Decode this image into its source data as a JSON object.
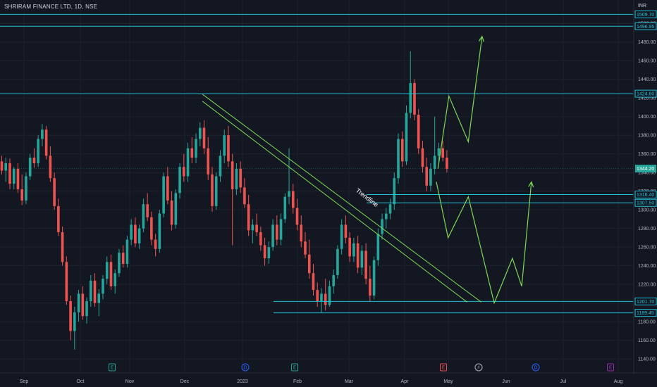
{
  "header": {
    "title": "SHRIRAM FINANCE LTD, 1D, NSE",
    "currency": "INR"
  },
  "colors": {
    "background": "#131722",
    "up": "#26a69a",
    "down": "#ef5350",
    "level_line": "#22c2d6",
    "projection": "#7ed957",
    "trendline": "#7ed957",
    "axis_text": "#b2b5be"
  },
  "chart_data": {
    "type": "candlestick",
    "ylim": [
      1135,
      1520
    ],
    "x_tick_labels": [
      "Sep",
      "Oct",
      "Nov",
      "Dec",
      "2023",
      "Feb",
      "Mar",
      "Apr",
      "May",
      "Jun",
      "Jul",
      "Aug"
    ],
    "y_tick_labels": [
      "1140.00",
      "1160.00",
      "1180.00",
      "1200.00",
      "1220.00",
      "1240.00",
      "1260.00",
      "1280.00",
      "1300.00",
      "1320.00",
      "1340.00",
      "1360.00",
      "1380.00",
      "1400.00",
      "1420.00",
      "1440.00",
      "1460.00",
      "1480.00",
      "1500.00"
    ],
    "current_price": {
      "value": 1344.2,
      "label": "1344.20"
    },
    "levels": [
      {
        "value": 1509.7,
        "label": "1509.70"
      },
      {
        "value": 1496.95,
        "label": "1496.95"
      },
      {
        "value": 1424.6,
        "label": "1424.60"
      },
      {
        "value": 1316.4,
        "label": "1316.40"
      },
      {
        "value": 1307.5,
        "label": "1307.50"
      },
      {
        "value": 1201.7,
        "label": "1201.70"
      },
      {
        "value": 1189.45,
        "label": "1189.45"
      }
    ],
    "trendline_label": "Trendline",
    "event_markers": [
      {
        "label": "E",
        "color": "#26a69a"
      },
      {
        "label": "D",
        "color": "#2962ff"
      },
      {
        "label": "E",
        "color": "#26a69a"
      },
      {
        "label": "E",
        "color": "#ef5350"
      },
      {
        "label": "⚡",
        "color": "#b2b5be"
      },
      {
        "label": "D",
        "color": "#2962ff"
      },
      {
        "label": "E",
        "color": "#9c27b0"
      }
    ],
    "candles": [
      {
        "o": 1352,
        "h": 1358,
        "l": 1338,
        "c": 1342
      },
      {
        "o": 1342,
        "h": 1356,
        "l": 1330,
        "c": 1350
      },
      {
        "o": 1350,
        "h": 1355,
        "l": 1322,
        "c": 1328
      },
      {
        "o": 1328,
        "h": 1346,
        "l": 1322,
        "c": 1344
      },
      {
        "o": 1344,
        "h": 1350,
        "l": 1318,
        "c": 1322
      },
      {
        "o": 1322,
        "h": 1338,
        "l": 1305,
        "c": 1310
      },
      {
        "o": 1310,
        "h": 1340,
        "l": 1306,
        "c": 1336
      },
      {
        "o": 1336,
        "h": 1360,
        "l": 1332,
        "c": 1356
      },
      {
        "o": 1356,
        "h": 1366,
        "l": 1345,
        "c": 1350
      },
      {
        "o": 1350,
        "h": 1380,
        "l": 1346,
        "c": 1376
      },
      {
        "o": 1376,
        "h": 1392,
        "l": 1368,
        "c": 1386
      },
      {
        "o": 1386,
        "h": 1390,
        "l": 1354,
        "c": 1358
      },
      {
        "o": 1358,
        "h": 1368,
        "l": 1330,
        "c": 1334
      },
      {
        "o": 1334,
        "h": 1340,
        "l": 1300,
        "c": 1304
      },
      {
        "o": 1304,
        "h": 1312,
        "l": 1272,
        "c": 1276
      },
      {
        "o": 1276,
        "h": 1282,
        "l": 1240,
        "c": 1244
      },
      {
        "o": 1244,
        "h": 1250,
        "l": 1198,
        "c": 1202
      },
      {
        "o": 1202,
        "h": 1208,
        "l": 1160,
        "c": 1170
      },
      {
        "o": 1170,
        "h": 1196,
        "l": 1150,
        "c": 1190
      },
      {
        "o": 1190,
        "h": 1214,
        "l": 1180,
        "c": 1210
      },
      {
        "o": 1210,
        "h": 1218,
        "l": 1182,
        "c": 1186
      },
      {
        "o": 1186,
        "h": 1206,
        "l": 1178,
        "c": 1202
      },
      {
        "o": 1202,
        "h": 1230,
        "l": 1196,
        "c": 1224
      },
      {
        "o": 1224,
        "h": 1232,
        "l": 1196,
        "c": 1200
      },
      {
        "o": 1200,
        "h": 1215,
        "l": 1186,
        "c": 1210
      },
      {
        "o": 1210,
        "h": 1230,
        "l": 1204,
        "c": 1226
      },
      {
        "o": 1226,
        "h": 1250,
        "l": 1220,
        "c": 1244
      },
      {
        "o": 1244,
        "h": 1252,
        "l": 1214,
        "c": 1218
      },
      {
        "o": 1218,
        "h": 1236,
        "l": 1210,
        "c": 1232
      },
      {
        "o": 1232,
        "h": 1258,
        "l": 1228,
        "c": 1254
      },
      {
        "o": 1254,
        "h": 1262,
        "l": 1238,
        "c": 1242
      },
      {
        "o": 1242,
        "h": 1272,
        "l": 1238,
        "c": 1268
      },
      {
        "o": 1268,
        "h": 1290,
        "l": 1262,
        "c": 1284
      },
      {
        "o": 1284,
        "h": 1292,
        "l": 1260,
        "c": 1264
      },
      {
        "o": 1264,
        "h": 1284,
        "l": 1258,
        "c": 1280
      },
      {
        "o": 1280,
        "h": 1312,
        "l": 1276,
        "c": 1306
      },
      {
        "o": 1306,
        "h": 1318,
        "l": 1288,
        "c": 1292
      },
      {
        "o": 1292,
        "h": 1298,
        "l": 1262,
        "c": 1268
      },
      {
        "o": 1268,
        "h": 1274,
        "l": 1250,
        "c": 1258
      },
      {
        "o": 1258,
        "h": 1300,
        "l": 1254,
        "c": 1296
      },
      {
        "o": 1296,
        "h": 1340,
        "l": 1292,
        "c": 1336
      },
      {
        "o": 1336,
        "h": 1346,
        "l": 1306,
        "c": 1310
      },
      {
        "o": 1310,
        "h": 1320,
        "l": 1278,
        "c": 1284
      },
      {
        "o": 1284,
        "h": 1322,
        "l": 1280,
        "c": 1318
      },
      {
        "o": 1318,
        "h": 1350,
        "l": 1312,
        "c": 1346
      },
      {
        "o": 1346,
        "h": 1360,
        "l": 1330,
        "c": 1336
      },
      {
        "o": 1336,
        "h": 1372,
        "l": 1330,
        "c": 1366
      },
      {
        "o": 1366,
        "h": 1378,
        "l": 1350,
        "c": 1356
      },
      {
        "o": 1356,
        "h": 1382,
        "l": 1350,
        "c": 1376
      },
      {
        "o": 1376,
        "h": 1394,
        "l": 1368,
        "c": 1388
      },
      {
        "o": 1388,
        "h": 1396,
        "l": 1360,
        "c": 1366
      },
      {
        "o": 1366,
        "h": 1378,
        "l": 1332,
        "c": 1338
      },
      {
        "o": 1338,
        "h": 1346,
        "l": 1298,
        "c": 1304
      },
      {
        "o": 1304,
        "h": 1340,
        "l": 1300,
        "c": 1336
      },
      {
        "o": 1336,
        "h": 1364,
        "l": 1330,
        "c": 1358
      },
      {
        "o": 1358,
        "h": 1386,
        "l": 1350,
        "c": 1380
      },
      {
        "o": 1380,
        "h": 1390,
        "l": 1346,
        "c": 1352
      },
      {
        "o": 1352,
        "h": 1360,
        "l": 1262,
        "c": 1322
      },
      {
        "o": 1322,
        "h": 1350,
        "l": 1316,
        "c": 1344
      },
      {
        "o": 1344,
        "h": 1352,
        "l": 1318,
        "c": 1324
      },
      {
        "o": 1324,
        "h": 1334,
        "l": 1302,
        "c": 1306
      },
      {
        "o": 1306,
        "h": 1316,
        "l": 1272,
        "c": 1278
      },
      {
        "o": 1278,
        "h": 1290,
        "l": 1264,
        "c": 1284
      },
      {
        "o": 1284,
        "h": 1296,
        "l": 1272,
        "c": 1276
      },
      {
        "o": 1276,
        "h": 1282,
        "l": 1256,
        "c": 1262
      },
      {
        "o": 1262,
        "h": 1270,
        "l": 1240,
        "c": 1248
      },
      {
        "o": 1248,
        "h": 1266,
        "l": 1242,
        "c": 1260
      },
      {
        "o": 1260,
        "h": 1290,
        "l": 1256,
        "c": 1284
      },
      {
        "o": 1284,
        "h": 1294,
        "l": 1262,
        "c": 1268
      },
      {
        "o": 1268,
        "h": 1296,
        "l": 1262,
        "c": 1290
      },
      {
        "o": 1290,
        "h": 1318,
        "l": 1286,
        "c": 1314
      },
      {
        "o": 1314,
        "h": 1366,
        "l": 1306,
        "c": 1320
      },
      {
        "o": 1320,
        "h": 1328,
        "l": 1296,
        "c": 1302
      },
      {
        "o": 1302,
        "h": 1312,
        "l": 1278,
        "c": 1284
      },
      {
        "o": 1284,
        "h": 1294,
        "l": 1260,
        "c": 1266
      },
      {
        "o": 1266,
        "h": 1276,
        "l": 1248,
        "c": 1252
      },
      {
        "o": 1252,
        "h": 1268,
        "l": 1226,
        "c": 1232
      },
      {
        "o": 1232,
        "h": 1242,
        "l": 1208,
        "c": 1214
      },
      {
        "o": 1214,
        "h": 1222,
        "l": 1196,
        "c": 1202
      },
      {
        "o": 1202,
        "h": 1216,
        "l": 1190,
        "c": 1210
      },
      {
        "o": 1210,
        "h": 1226,
        "l": 1192,
        "c": 1198
      },
      {
        "o": 1198,
        "h": 1224,
        "l": 1196,
        "c": 1218
      },
      {
        "o": 1218,
        "h": 1236,
        "l": 1210,
        "c": 1230
      },
      {
        "o": 1230,
        "h": 1262,
        "l": 1226,
        "c": 1258
      },
      {
        "o": 1258,
        "h": 1290,
        "l": 1252,
        "c": 1284
      },
      {
        "o": 1284,
        "h": 1294,
        "l": 1264,
        "c": 1270
      },
      {
        "o": 1270,
        "h": 1276,
        "l": 1244,
        "c": 1250
      },
      {
        "o": 1250,
        "h": 1270,
        "l": 1244,
        "c": 1264
      },
      {
        "o": 1264,
        "h": 1272,
        "l": 1232,
        "c": 1238
      },
      {
        "o": 1238,
        "h": 1262,
        "l": 1230,
        "c": 1256
      },
      {
        "o": 1256,
        "h": 1264,
        "l": 1220,
        "c": 1226
      },
      {
        "o": 1226,
        "h": 1240,
        "l": 1202,
        "c": 1208
      },
      {
        "o": 1208,
        "h": 1250,
        "l": 1204,
        "c": 1246
      },
      {
        "o": 1246,
        "h": 1280,
        "l": 1240,
        "c": 1274
      },
      {
        "o": 1274,
        "h": 1296,
        "l": 1268,
        "c": 1290
      },
      {
        "o": 1290,
        "h": 1302,
        "l": 1280,
        "c": 1296
      },
      {
        "o": 1296,
        "h": 1312,
        "l": 1290,
        "c": 1306
      },
      {
        "o": 1306,
        "h": 1340,
        "l": 1300,
        "c": 1334
      },
      {
        "o": 1334,
        "h": 1382,
        "l": 1328,
        "c": 1376
      },
      {
        "o": 1376,
        "h": 1384,
        "l": 1346,
        "c": 1352
      },
      {
        "o": 1352,
        "h": 1412,
        "l": 1348,
        "c": 1404
      },
      {
        "o": 1404,
        "h": 1470,
        "l": 1398,
        "c": 1436
      },
      {
        "o": 1436,
        "h": 1440,
        "l": 1396,
        "c": 1402
      },
      {
        "o": 1402,
        "h": 1408,
        "l": 1360,
        "c": 1366
      },
      {
        "o": 1366,
        "h": 1374,
        "l": 1340,
        "c": 1346
      },
      {
        "o": 1346,
        "h": 1356,
        "l": 1320,
        "c": 1326
      },
      {
        "o": 1326,
        "h": 1350,
        "l": 1320,
        "c": 1344
      },
      {
        "o": 1344,
        "h": 1400,
        "l": 1338,
        "c": 1358
      },
      {
        "o": 1358,
        "h": 1372,
        "l": 1350,
        "c": 1366
      },
      {
        "o": 1366,
        "h": 1374,
        "l": 1352,
        "c": 1356
      },
      {
        "o": 1356,
        "h": 1364,
        "l": 1340,
        "c": 1344
      }
    ],
    "projection_paths": [
      [
        {
          "ci": 107.8,
          "v": 1344
        },
        {
          "ci": 110.5,
          "v": 1422
        },
        {
          "ci": 115.3,
          "v": 1373
        },
        {
          "ci": 118.7,
          "v": 1486
        }
      ],
      [
        {
          "ci": 107.4,
          "v": 1330
        },
        {
          "ci": 110.3,
          "v": 1270
        },
        {
          "ci": 115.3,
          "v": 1314
        },
        {
          "ci": 121.7,
          "v": 1200
        },
        {
          "ci": 126.2,
          "v": 1248
        },
        {
          "ci": 128.5,
          "v": 1218
        },
        {
          "ci": 130.9,
          "v": 1330
        }
      ]
    ],
    "trendline_points": [
      {
        "ci": 49.6,
        "v": 1424
      },
      {
        "ci": 115.0,
        "v": 1201
      }
    ]
  }
}
